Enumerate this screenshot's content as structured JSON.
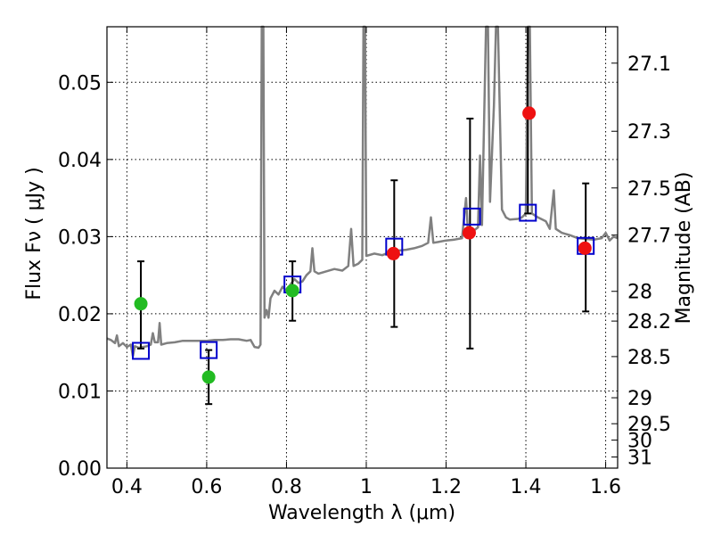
{
  "chart_data": {
    "type": "scatter",
    "title": "",
    "xlabel": "Wavelength  λ (μm)",
    "ylabel_left": "Flux  Fν  ( μJy )",
    "ylabel_right": "Magnitude (AB)",
    "xlim": [
      0.35,
      1.63
    ],
    "ylim": [
      0.0,
      0.0572
    ],
    "grid": true,
    "x_ticks": [
      {
        "value": 0.4,
        "label": "0.4"
      },
      {
        "value": 0.6,
        "label": "0.6"
      },
      {
        "value": 0.8,
        "label": "0.8"
      },
      {
        "value": 1.0,
        "label": "1"
      },
      {
        "value": 1.2,
        "label": "1.2"
      },
      {
        "value": 1.4,
        "label": "1.4"
      },
      {
        "value": 1.6,
        "label": "1.6"
      }
    ],
    "y_ticks": [
      {
        "value": 0.0,
        "label": "0.00"
      },
      {
        "value": 0.01,
        "label": "0.01"
      },
      {
        "value": 0.02,
        "label": "0.02"
      },
      {
        "value": 0.03,
        "label": "0.03"
      },
      {
        "value": 0.04,
        "label": "0.04"
      },
      {
        "value": 0.05,
        "label": "0.05"
      }
    ],
    "right_ticks": [
      {
        "value": 27.1,
        "label": "27.1"
      },
      {
        "value": 27.3,
        "label": "27.3"
      },
      {
        "value": 27.5,
        "label": "27.5"
      },
      {
        "value": 27.7,
        "label": "27.7"
      },
      {
        "value": 28.0,
        "label": "28"
      },
      {
        "value": 28.2,
        "label": "28.2"
      },
      {
        "value": 28.5,
        "label": "28.5"
      },
      {
        "value": 29.0,
        "label": "29"
      },
      {
        "value": 29.5,
        "label": "29.5"
      },
      {
        "value": 30.0,
        "label": "30"
      },
      {
        "value": 31.0,
        "label": "31"
      }
    ],
    "series": [
      {
        "kind": "line",
        "color": "#808080",
        "points": [
          [
            0.35,
            0.0168
          ],
          [
            0.36,
            0.0166
          ],
          [
            0.37,
            0.0162
          ],
          [
            0.375,
            0.0172
          ],
          [
            0.38,
            0.0158
          ],
          [
            0.39,
            0.0162
          ],
          [
            0.4,
            0.0157
          ],
          [
            0.41,
            0.016
          ],
          [
            0.415,
            0.0145
          ],
          [
            0.42,
            0.0158
          ],
          [
            0.43,
            0.0156
          ],
          [
            0.44,
            0.0157
          ],
          [
            0.45,
            0.0158
          ],
          [
            0.46,
            0.016
          ],
          [
            0.465,
            0.0175
          ],
          [
            0.47,
            0.0163
          ],
          [
            0.478,
            0.0163
          ],
          [
            0.482,
            0.0188
          ],
          [
            0.486,
            0.016
          ],
          [
            0.5,
            0.0162
          ],
          [
            0.52,
            0.0163
          ],
          [
            0.54,
            0.0165
          ],
          [
            0.56,
            0.0165
          ],
          [
            0.58,
            0.0165
          ],
          [
            0.6,
            0.0165
          ],
          [
            0.62,
            0.0166
          ],
          [
            0.64,
            0.0166
          ],
          [
            0.66,
            0.0167
          ],
          [
            0.68,
            0.0167
          ],
          [
            0.7,
            0.0165
          ],
          [
            0.71,
            0.0166
          ],
          [
            0.72,
            0.0157
          ],
          [
            0.73,
            0.0156
          ],
          [
            0.735,
            0.016
          ],
          [
            0.738,
            0.0572
          ],
          [
            0.742,
            0.0572
          ],
          [
            0.745,
            0.0195
          ],
          [
            0.75,
            0.0205
          ],
          [
            0.755,
            0.0195
          ],
          [
            0.76,
            0.022
          ],
          [
            0.77,
            0.023
          ],
          [
            0.78,
            0.0225
          ],
          [
            0.79,
            0.0235
          ],
          [
            0.8,
            0.023
          ],
          [
            0.81,
            0.0238
          ],
          [
            0.82,
            0.0245
          ],
          [
            0.83,
            0.024
          ],
          [
            0.84,
            0.0242
          ],
          [
            0.85,
            0.025
          ],
          [
            0.86,
            0.0255
          ],
          [
            0.865,
            0.0285
          ],
          [
            0.87,
            0.0255
          ],
          [
            0.88,
            0.0252
          ],
          [
            0.9,
            0.0255
          ],
          [
            0.92,
            0.0258
          ],
          [
            0.94,
            0.0256
          ],
          [
            0.955,
            0.0262
          ],
          [
            0.962,
            0.031
          ],
          [
            0.968,
            0.0262
          ],
          [
            0.98,
            0.0265
          ],
          [
            0.99,
            0.027
          ],
          [
            0.993,
            0.0572
          ],
          [
            0.997,
            0.0572
          ],
          [
            1.0,
            0.0275
          ],
          [
            1.02,
            0.0278
          ],
          [
            1.04,
            0.0276
          ],
          [
            1.06,
            0.028
          ],
          [
            1.08,
            0.0282
          ],
          [
            1.1,
            0.0283
          ],
          [
            1.12,
            0.0285
          ],
          [
            1.14,
            0.0288
          ],
          [
            1.155,
            0.0292
          ],
          [
            1.162,
            0.0325
          ],
          [
            1.168,
            0.0292
          ],
          [
            1.18,
            0.0293
          ],
          [
            1.2,
            0.0295
          ],
          [
            1.22,
            0.0296
          ],
          [
            1.24,
            0.0298
          ],
          [
            1.25,
            0.035
          ],
          [
            1.255,
            0.0305
          ],
          [
            1.26,
            0.03
          ],
          [
            1.27,
            0.0308
          ],
          [
            1.28,
            0.0312
          ],
          [
            1.285,
            0.0405
          ],
          [
            1.29,
            0.0315
          ],
          [
            1.3,
            0.0572
          ],
          [
            1.305,
            0.0572
          ],
          [
            1.31,
            0.0345
          ],
          [
            1.32,
            0.047
          ],
          [
            1.325,
            0.0572
          ],
          [
            1.33,
            0.0572
          ],
          [
            1.34,
            0.0335
          ],
          [
            1.35,
            0.0325
          ],
          [
            1.36,
            0.0322
          ],
          [
            1.38,
            0.0323
          ],
          [
            1.39,
            0.0325
          ],
          [
            1.4,
            0.033
          ],
          [
            1.405,
            0.0572
          ],
          [
            1.41,
            0.0572
          ],
          [
            1.415,
            0.033
          ],
          [
            1.43,
            0.0325
          ],
          [
            1.45,
            0.032
          ],
          [
            1.46,
            0.031
          ],
          [
            1.47,
            0.036
          ],
          [
            1.475,
            0.031
          ],
          [
            1.49,
            0.0305
          ],
          [
            1.51,
            0.0302
          ],
          [
            1.53,
            0.0298
          ],
          [
            1.55,
            0.0297
          ],
          [
            1.57,
            0.0296
          ],
          [
            1.59,
            0.0298
          ],
          [
            1.6,
            0.0305
          ],
          [
            1.61,
            0.0295
          ],
          [
            1.62,
            0.03
          ],
          [
            1.63,
            0.0298
          ]
        ]
      },
      {
        "kind": "squares",
        "color": "#0000cc",
        "points": [
          [
            0.435,
            0.0152
          ],
          [
            0.605,
            0.0153
          ],
          [
            0.815,
            0.0238
          ],
          [
            1.07,
            0.0287
          ],
          [
            1.265,
            0.0326
          ],
          [
            1.405,
            0.0331
          ],
          [
            1.55,
            0.0288
          ]
        ]
      },
      {
        "kind": "points",
        "color": "#22bb22",
        "points": [
          [
            0.435,
            0.0213
          ],
          [
            0.605,
            0.0118
          ],
          [
            0.815,
            0.023
          ]
        ]
      },
      {
        "kind": "points",
        "color": "#ee1111",
        "points": [
          [
            1.068,
            0.0278
          ],
          [
            1.258,
            0.0305
          ],
          [
            1.408,
            0.046
          ],
          [
            1.548,
            0.0285
          ]
        ]
      },
      {
        "kind": "errorbars",
        "color": "#000000",
        "bars": [
          {
            "x": 0.435,
            "low": 0.0155,
            "high": 0.0268
          },
          {
            "x": 0.605,
            "low": 0.0083,
            "high": 0.0153
          },
          {
            "x": 0.815,
            "low": 0.0191,
            "high": 0.0268
          },
          {
            "x": 1.07,
            "low": 0.0183,
            "high": 0.0373
          },
          {
            "x": 1.26,
            "low": 0.0155,
            "high": 0.0453
          },
          {
            "x": 1.405,
            "low": 0.033,
            "high": 0.0572
          },
          {
            "x": 1.55,
            "low": 0.0203,
            "high": 0.0369
          }
        ]
      }
    ]
  }
}
